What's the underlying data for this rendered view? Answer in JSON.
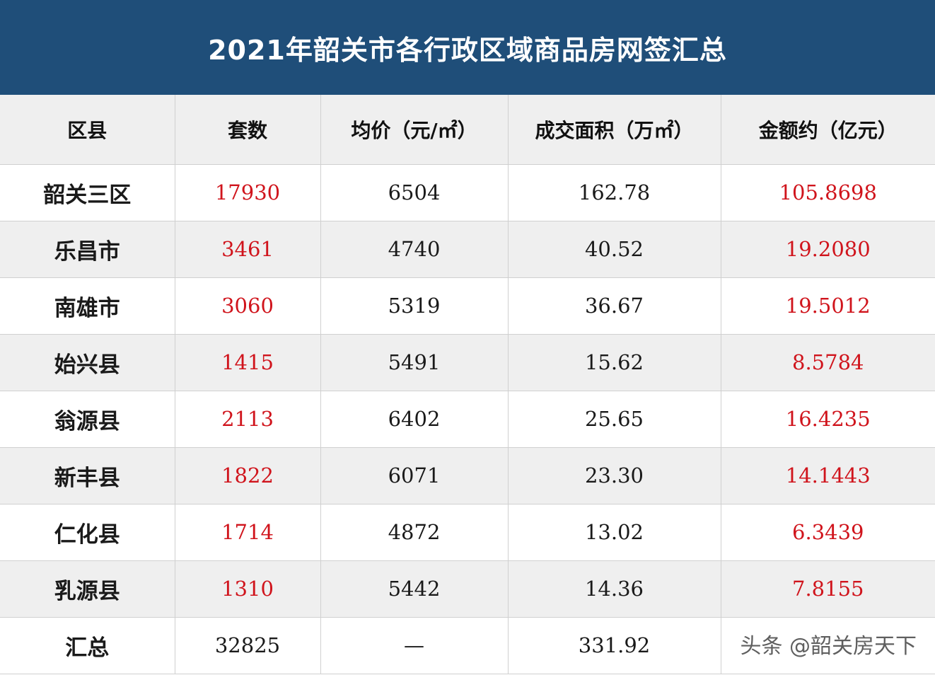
{
  "title": "2021年韶关市各行政区域商品房网签汇总",
  "colors": {
    "title_bg": "#1f4e79",
    "highlight_text": "#d0141c",
    "header_bg": "#efefef"
  },
  "table": {
    "headers": [
      "区县",
      "套数",
      "均价（元/㎡）",
      "成交面积（万㎡）",
      "金额约（亿元）"
    ],
    "rows": [
      {
        "district": "韶关三区",
        "units": "17930",
        "avg_price": "6504",
        "area": "162.78",
        "amount": "105.8698"
      },
      {
        "district": "乐昌市",
        "units": "3461",
        "avg_price": "4740",
        "area": "40.52",
        "amount": "19.2080"
      },
      {
        "district": "南雄市",
        "units": "3060",
        "avg_price": "5319",
        "area": "36.67",
        "amount": "19.5012"
      },
      {
        "district": "始兴县",
        "units": "1415",
        "avg_price": "5491",
        "area": "15.62",
        "amount": "8.5784"
      },
      {
        "district": "翁源县",
        "units": "2113",
        "avg_price": "6402",
        "area": "25.65",
        "amount": "16.4235"
      },
      {
        "district": "新丰县",
        "units": "1822",
        "avg_price": "6071",
        "area": "23.30",
        "amount": "14.1443"
      },
      {
        "district": "仁化县",
        "units": "1714",
        "avg_price": "4872",
        "area": "13.02",
        "amount": "6.3439"
      },
      {
        "district": "乳源县",
        "units": "1310",
        "avg_price": "5442",
        "area": "14.36",
        "amount": "7.8155"
      }
    ],
    "total": {
      "district": "汇总",
      "units": "32825",
      "avg_price": "—",
      "area": "331.92",
      "amount": ""
    }
  },
  "watermark": "头条 @韶关房天下"
}
